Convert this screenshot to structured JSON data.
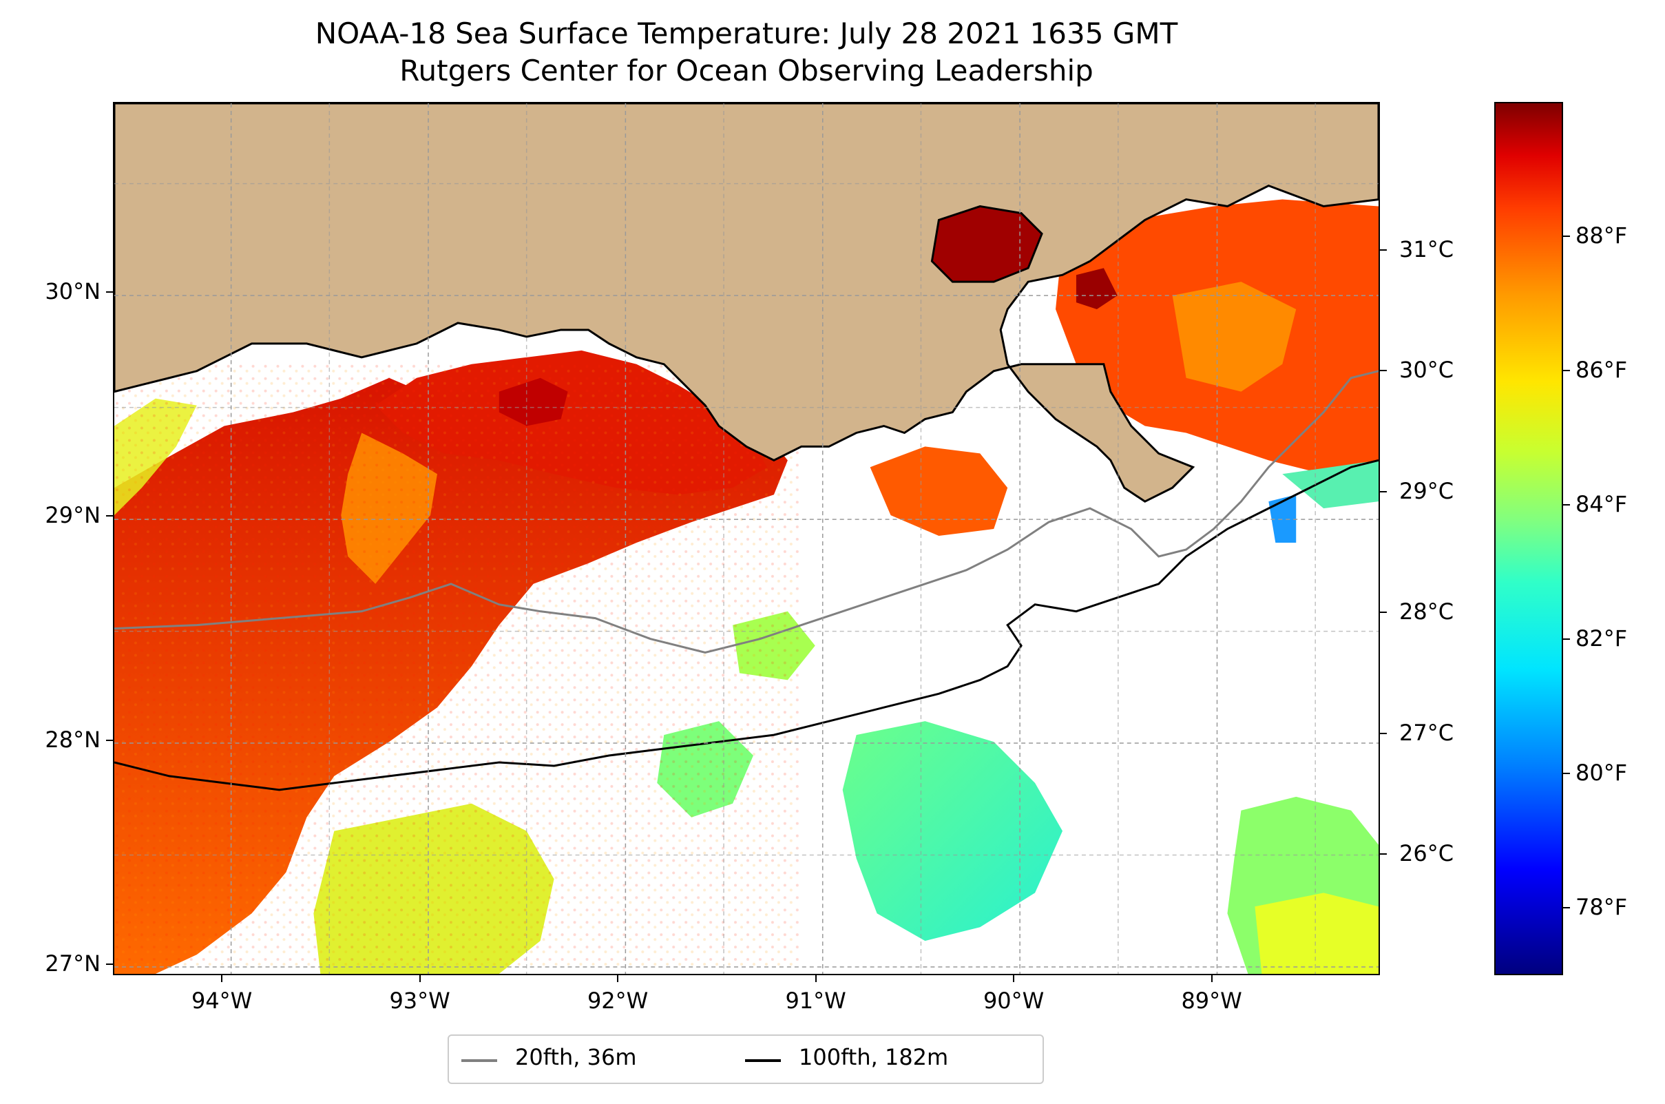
{
  "title": {
    "line1": "NOAA-18 Sea Surface Temperature: July 28 2021 1635 GMT",
    "line2": "Rutgers Center for Ocean Observing Leadership"
  },
  "map": {
    "lon_range": [
      -94.55,
      -88.15
    ],
    "lat_range": [
      26.95,
      30.85
    ],
    "lon_ticks": [
      {
        "value": -94,
        "label": "94°W"
      },
      {
        "value": -93,
        "label": "93°W"
      },
      {
        "value": -92,
        "label": "92°W"
      },
      {
        "value": -91,
        "label": "91°W"
      },
      {
        "value": -90,
        "label": "90°W"
      },
      {
        "value": -89,
        "label": "89°W"
      }
    ],
    "lat_ticks": [
      {
        "value": 27,
        "label": "27°N"
      },
      {
        "value": 28,
        "label": "28°N"
      },
      {
        "value": 29,
        "label": "29°N"
      },
      {
        "value": 30,
        "label": "30°N"
      }
    ],
    "grid": true,
    "land_color": "#d2b48c",
    "colormap": "jet"
  },
  "colorbar": {
    "celsius_ticks": [
      {
        "value": 26,
        "label": "26°C"
      },
      {
        "value": 27,
        "label": "27°C"
      },
      {
        "value": 28,
        "label": "28°C"
      },
      {
        "value": 29,
        "label": "29°C"
      },
      {
        "value": 30,
        "label": "30°C"
      },
      {
        "value": 31,
        "label": "31°C"
      }
    ],
    "fahrenheit_ticks": [
      {
        "value": 78,
        "label": "78°F"
      },
      {
        "value": 80,
        "label": "80°F"
      },
      {
        "value": 82,
        "label": "82°F"
      },
      {
        "value": 84,
        "label": "84°F"
      },
      {
        "value": 86,
        "label": "86°F"
      },
      {
        "value": 88,
        "label": "88°F"
      }
    ],
    "range_f": [
      77,
      90
    ]
  },
  "legend": {
    "items": [
      {
        "label": "20fth, 36m",
        "color": "#808080"
      },
      {
        "label": "100fth, 182m",
        "color": "#000000"
      }
    ]
  }
}
